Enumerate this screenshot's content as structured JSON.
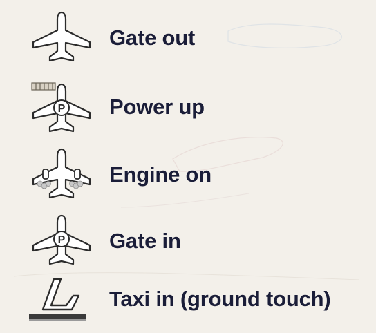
{
  "legend": {
    "items": [
      {
        "icon": "airplane-icon",
        "label": "Gate out"
      },
      {
        "icon": "airplane-power-ladder-icon",
        "label": "Power up"
      },
      {
        "icon": "airplane-engine-smoke-icon",
        "label": "Engine on"
      },
      {
        "icon": "airplane-parking-icon",
        "label": "Gate in"
      },
      {
        "icon": "takeoff-landing-icon",
        "label": "Taxi in (ground touch)"
      }
    ]
  },
  "colors": {
    "text": "#1a1d38",
    "icon_fill": "#ffffff",
    "icon_stroke": "#2b2b2b",
    "background": "#f4f1ec"
  }
}
